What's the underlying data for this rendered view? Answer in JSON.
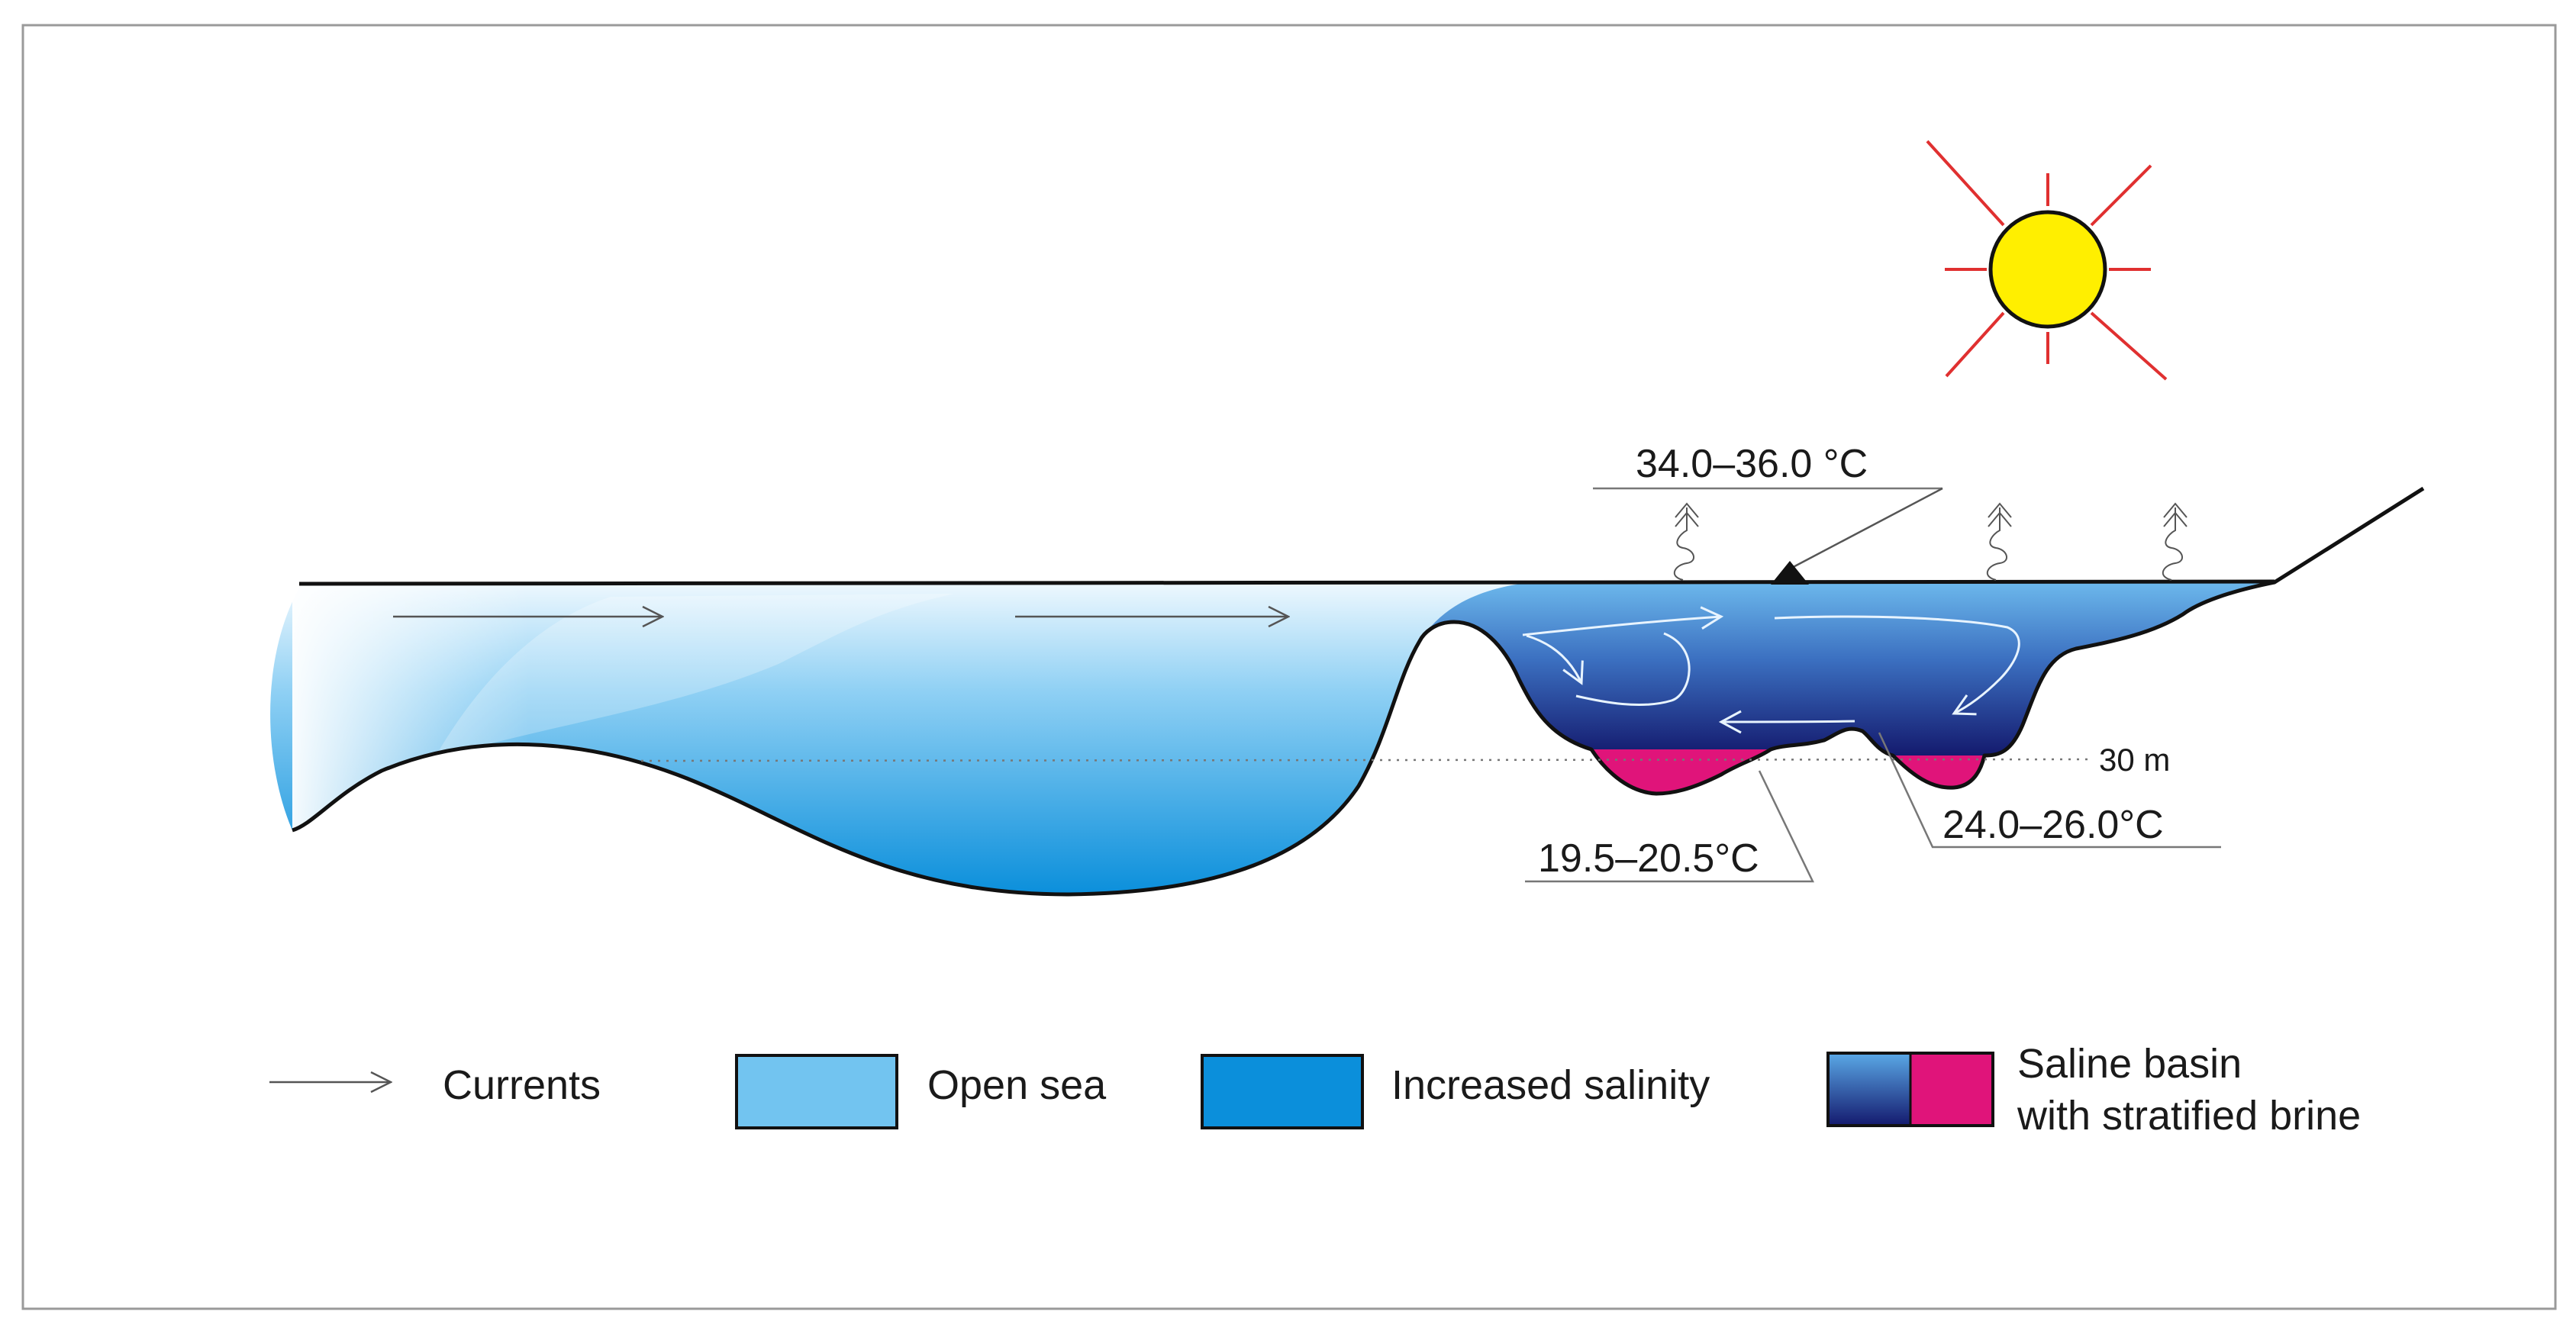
{
  "diagram": {
    "labels": {
      "surface_temp": "34.0–36.0 °C",
      "brine_temp_left": "19.5–20.5°C",
      "brine_temp_right": "24.0–26.0°C",
      "depth_marker": "30 m"
    },
    "legend": [
      {
        "label": "Currents",
        "symbol": "arrow"
      },
      {
        "label": "Open sea",
        "symbol": "swatch",
        "color": "#72c4f0"
      },
      {
        "label": "Increased salinity",
        "symbol": "swatch",
        "color": "#0b8fdb"
      },
      {
        "label": "Saline basin",
        "label_line2": "with stratified brine",
        "symbol": "double-swatch",
        "colors": [
          "#5aa8e6",
          "#141a6e",
          "#e0147a"
        ]
      }
    ],
    "colors": {
      "open_sea_light": "#e6f5fd",
      "open_sea": "#72c4f0",
      "increased_salinity": "#0b8fdb",
      "basin_top": "#6bb6ea",
      "basin_bottom": "#141a6e",
      "brine": "#e0147a",
      "sun_fill": "#ffef00",
      "sun_rays": "#e03030",
      "outline": "#111111"
    }
  }
}
